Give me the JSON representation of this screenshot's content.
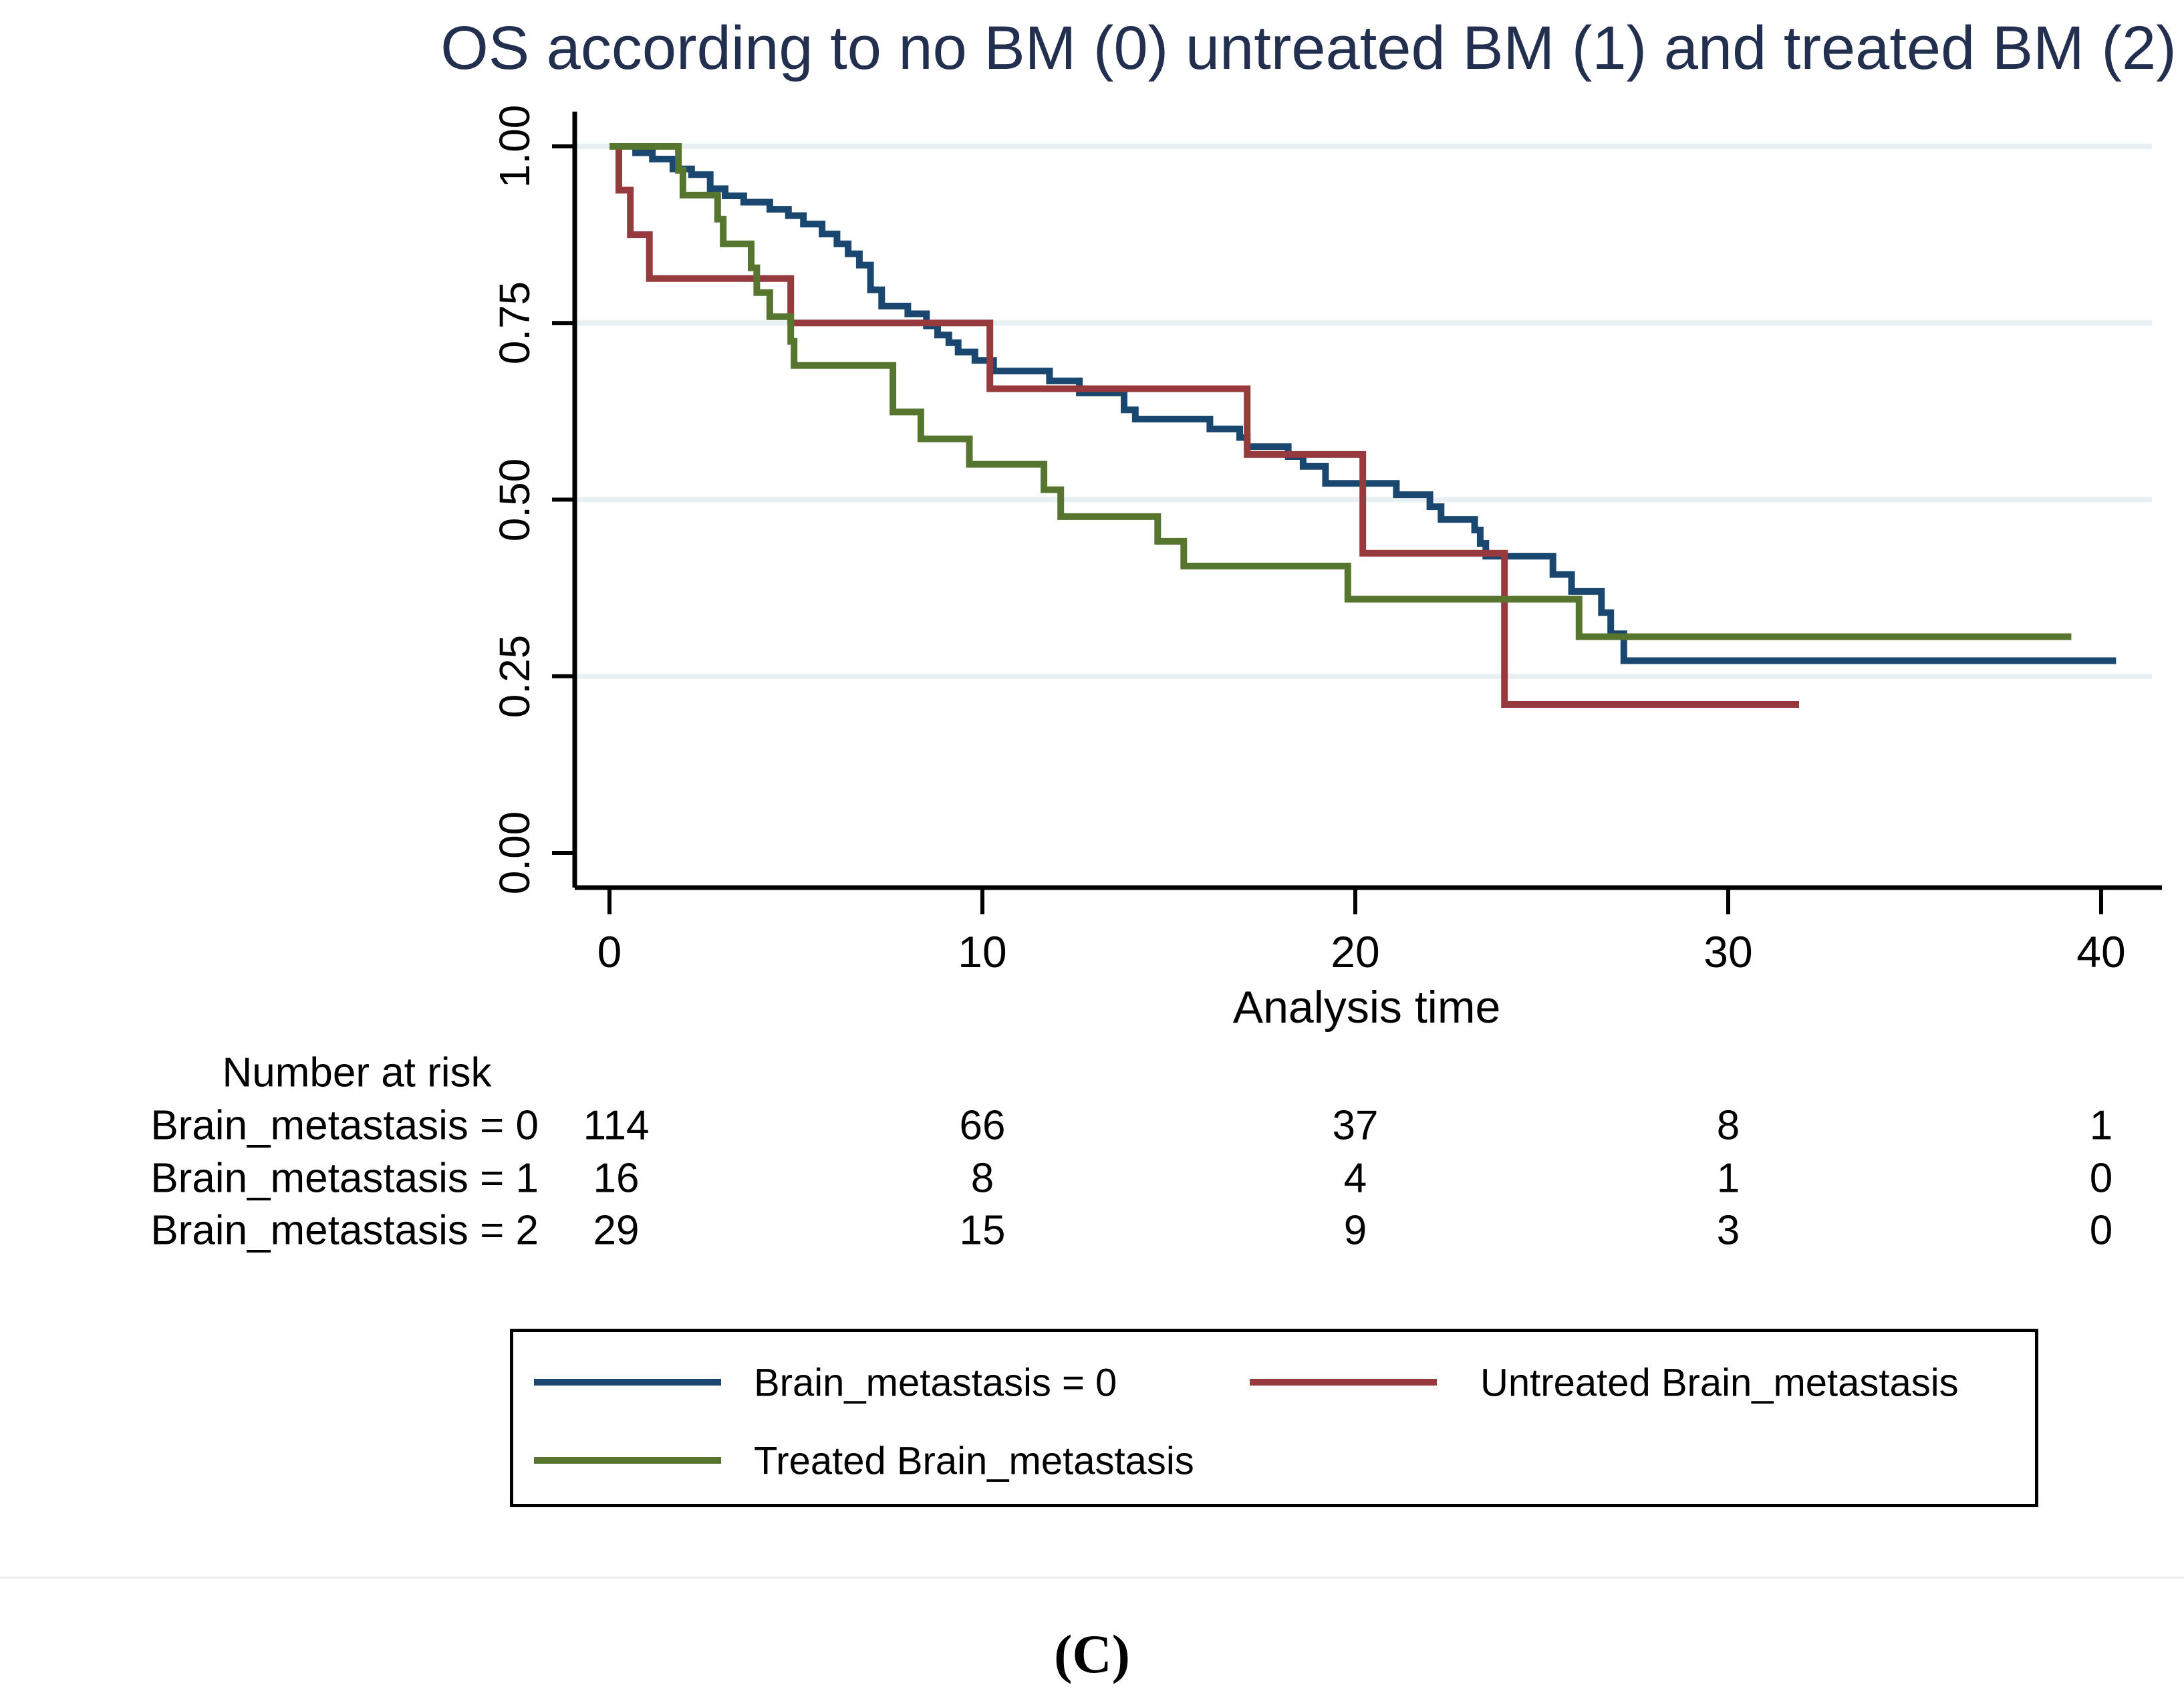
{
  "title": "OS according to no BM (0) untreated BM (1) and treated BM (2)",
  "caption": "(C)",
  "colors": {
    "title": "#232F4E",
    "series_0": "#1A476F",
    "series_1": "#963A3E",
    "series_2": "#567630",
    "gridline": "#E9F0F3",
    "axis": "#000000"
  },
  "chart_data": {
    "type": "line",
    "subtype": "kaplan-meier-step",
    "title": "OS according to no BM (0) untreated BM (1) and treated BM (2)",
    "xlabel": "Analysis time",
    "ylabel": "",
    "xlim": [
      0,
      41.5
    ],
    "ylim": [
      0,
      1
    ],
    "grid": true,
    "legend_position": "bottom-box",
    "x_ticks": [
      {
        "label": "0",
        "value": 0
      },
      {
        "label": "10",
        "value": 10
      },
      {
        "label": "20",
        "value": 20
      },
      {
        "label": "30",
        "value": 30
      },
      {
        "label": "40",
        "value": 40
      }
    ],
    "y_ticks": [
      {
        "label": "1.00",
        "value": 1.0
      },
      {
        "label": "0.75",
        "value": 0.75
      },
      {
        "label": "0.50",
        "value": 0.5
      },
      {
        "label": "0.25",
        "value": 0.25
      },
      {
        "label": "0.00",
        "value": 0.0
      }
    ],
    "series": [
      {
        "name": "Brain_metastasis = 0",
        "color": "#1A476F",
        "end_time": 40.4,
        "points": [
          [
            0,
            1.0
          ],
          [
            0.7,
            0.991
          ],
          [
            1.15,
            0.982
          ],
          [
            1.7,
            0.968
          ],
          [
            2.2,
            0.96
          ],
          [
            2.7,
            0.94
          ],
          [
            3.1,
            0.93
          ],
          [
            3.6,
            0.921
          ],
          [
            4.3,
            0.911
          ],
          [
            4.8,
            0.902
          ],
          [
            5.2,
            0.89
          ],
          [
            5.7,
            0.876
          ],
          [
            6.1,
            0.862
          ],
          [
            6.4,
            0.848
          ],
          [
            6.7,
            0.832
          ],
          [
            7.0,
            0.797
          ],
          [
            7.3,
            0.774
          ],
          [
            8.0,
            0.763
          ],
          [
            8.5,
            0.746
          ],
          [
            8.8,
            0.733
          ],
          [
            9.1,
            0.722
          ],
          [
            9.35,
            0.709
          ],
          [
            9.8,
            0.697
          ],
          [
            10.3,
            0.682
          ],
          [
            11.8,
            0.668
          ],
          [
            12.6,
            0.651
          ],
          [
            13.8,
            0.627
          ],
          [
            14.1,
            0.614
          ],
          [
            16.1,
            0.6
          ],
          [
            16.9,
            0.588
          ],
          [
            17.1,
            0.575
          ],
          [
            18.2,
            0.561
          ],
          [
            18.6,
            0.547
          ],
          [
            19.2,
            0.523
          ],
          [
            21.1,
            0.507
          ],
          [
            22.0,
            0.49
          ],
          [
            22.3,
            0.472
          ],
          [
            23.2,
            0.457
          ],
          [
            23.35,
            0.438
          ],
          [
            23.5,
            0.42
          ],
          [
            25.3,
            0.394
          ],
          [
            25.8,
            0.37
          ],
          [
            26.6,
            0.34
          ],
          [
            26.85,
            0.31
          ],
          [
            27.2,
            0.272
          ]
        ]
      },
      {
        "name": "Untreated Brain_metastasis",
        "color": "#963A3E",
        "end_time": 31.9,
        "points": [
          [
            0,
            1.0
          ],
          [
            0.25,
            0.938
          ],
          [
            0.56,
            0.875
          ],
          [
            1.07,
            0.813
          ],
          [
            4.86,
            0.75
          ],
          [
            10.2,
            0.657
          ],
          [
            17.1,
            0.564
          ],
          [
            20.2,
            0.424
          ],
          [
            24.0,
            0.21
          ]
        ]
      },
      {
        "name": "Treated Brain_metastasis",
        "color": "#567630",
        "end_time": 39.2,
        "points": [
          [
            0,
            1.0
          ],
          [
            1.85,
            0.966
          ],
          [
            1.97,
            0.931
          ],
          [
            2.9,
            0.897
          ],
          [
            3.05,
            0.862
          ],
          [
            3.8,
            0.828
          ],
          [
            3.95,
            0.793
          ],
          [
            4.3,
            0.759
          ],
          [
            4.86,
            0.724
          ],
          [
            4.95,
            0.69
          ],
          [
            7.6,
            0.624
          ],
          [
            8.35,
            0.586
          ],
          [
            9.65,
            0.55
          ],
          [
            11.65,
            0.514
          ],
          [
            12.1,
            0.476
          ],
          [
            14.7,
            0.441
          ],
          [
            15.4,
            0.406
          ],
          [
            19.8,
            0.359
          ],
          [
            26.0,
            0.306
          ]
        ]
      }
    ]
  },
  "risk_table": {
    "header": "Number at risk",
    "rows": [
      {
        "label": "Brain_metastasis = 0",
        "counts": [
          "114",
          "66",
          "37",
          "8",
          "1"
        ]
      },
      {
        "label": "Brain_metastasis = 1",
        "counts": [
          "16",
          "8",
          "4",
          "1",
          "0"
        ]
      },
      {
        "label": "Brain_metastasis = 2",
        "counts": [
          "29",
          "15",
          "9",
          "3",
          "0"
        ]
      }
    ]
  },
  "legend": {
    "items": [
      {
        "label": "Brain_metastasis = 0",
        "color": "#1A476F"
      },
      {
        "label": "Untreated Brain_metastasis",
        "color": "#963A3E"
      },
      {
        "label": "Treated Brain_metastasis",
        "color": "#567630"
      }
    ]
  }
}
